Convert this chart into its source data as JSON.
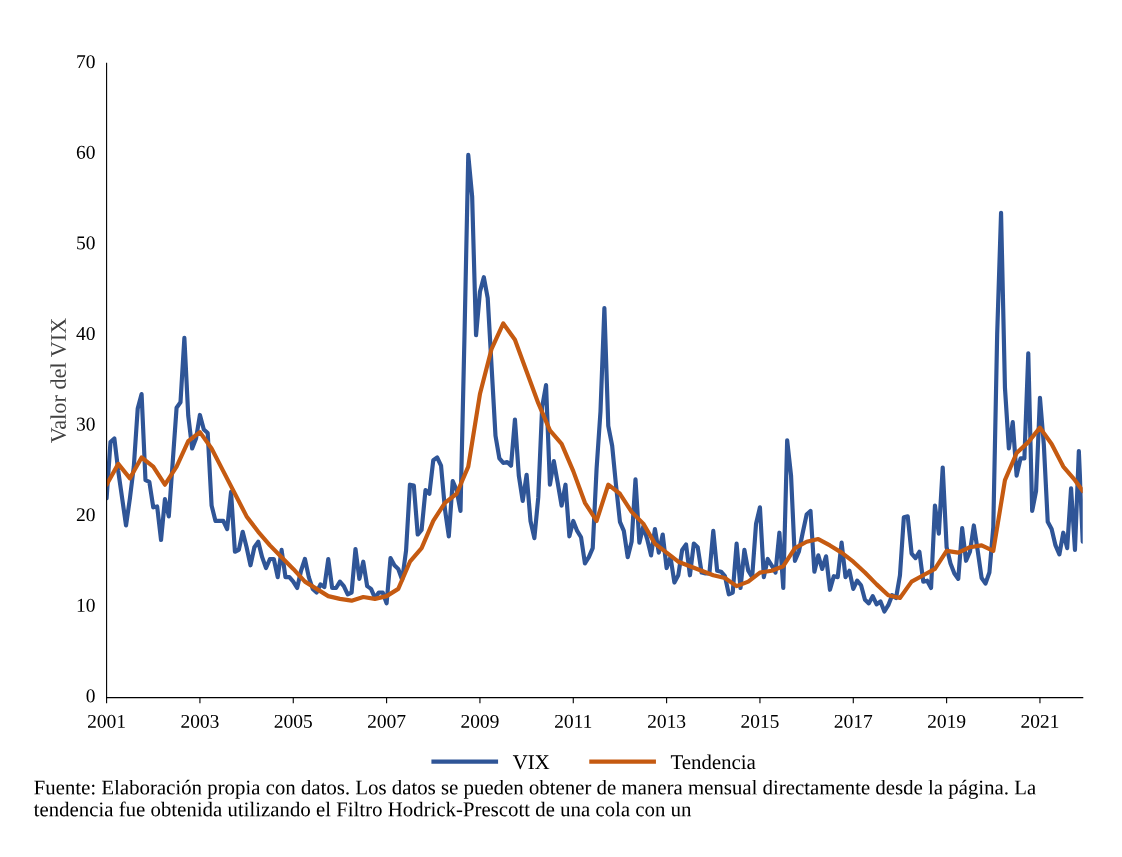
{
  "chart_data": {
    "type": "line",
    "ylabel": "Valor del VIX",
    "ylim": [
      0,
      70
    ],
    "yticks": [
      0,
      10,
      20,
      30,
      40,
      50,
      60,
      70
    ],
    "xlim": [
      "2001-01",
      "2021-12"
    ],
    "xticks": [
      {
        "value": "2001-01",
        "label": "2001"
      },
      {
        "value": "2003-01",
        "label": "2003"
      },
      {
        "value": "2005-01",
        "label": "2005"
      },
      {
        "value": "2007-01",
        "label": "2007"
      },
      {
        "value": "2009-01",
        "label": "2009"
      },
      {
        "value": "2011-01",
        "label": "2011"
      },
      {
        "value": "2013-01",
        "label": "2013"
      },
      {
        "value": "2015-01",
        "label": "2015"
      },
      {
        "value": "2017-01",
        "label": "2017"
      },
      {
        "value": "2019-01",
        "label": "2019"
      },
      {
        "value": "2021-01",
        "label": "2021"
      }
    ],
    "grid": false,
    "legend": "bottom",
    "series": [
      {
        "name": "VIX",
        "color": "#2f5597",
        "x": [
          "2001-01",
          "2001-02",
          "2001-03",
          "2001-04",
          "2001-05",
          "2001-06",
          "2001-07",
          "2001-08",
          "2001-09",
          "2001-10",
          "2001-11",
          "2001-12",
          "2002-01",
          "2002-02",
          "2002-03",
          "2002-04",
          "2002-05",
          "2002-06",
          "2002-07",
          "2002-08",
          "2002-09",
          "2002-10",
          "2002-11",
          "2002-12",
          "2003-01",
          "2003-02",
          "2003-03",
          "2003-04",
          "2003-05",
          "2003-06",
          "2003-07",
          "2003-08",
          "2003-09",
          "2003-10",
          "2003-11",
          "2003-12",
          "2004-01",
          "2004-02",
          "2004-03",
          "2004-04",
          "2004-05",
          "2004-06",
          "2004-07",
          "2004-08",
          "2004-09",
          "2004-10",
          "2004-11",
          "2004-12",
          "2005-01",
          "2005-02",
          "2005-03",
          "2005-04",
          "2005-05",
          "2005-06",
          "2005-07",
          "2005-08",
          "2005-09",
          "2005-10",
          "2005-11",
          "2005-12",
          "2006-01",
          "2006-02",
          "2006-03",
          "2006-04",
          "2006-05",
          "2006-06",
          "2006-07",
          "2006-08",
          "2006-09",
          "2006-10",
          "2006-11",
          "2006-12",
          "2007-01",
          "2007-02",
          "2007-03",
          "2007-04",
          "2007-05",
          "2007-06",
          "2007-07",
          "2007-08",
          "2007-09",
          "2007-10",
          "2007-11",
          "2007-12",
          "2008-01",
          "2008-02",
          "2008-03",
          "2008-04",
          "2008-05",
          "2008-06",
          "2008-07",
          "2008-08",
          "2008-09",
          "2008-10",
          "2008-11",
          "2008-12",
          "2009-01",
          "2009-02",
          "2009-03",
          "2009-04",
          "2009-05",
          "2009-06",
          "2009-07",
          "2009-08",
          "2009-09",
          "2009-10",
          "2009-11",
          "2009-12",
          "2010-01",
          "2010-02",
          "2010-03",
          "2010-04",
          "2010-05",
          "2010-06",
          "2010-07",
          "2010-08",
          "2010-09",
          "2010-10",
          "2010-11",
          "2010-12",
          "2011-01",
          "2011-02",
          "2011-03",
          "2011-04",
          "2011-05",
          "2011-06",
          "2011-07",
          "2011-08",
          "2011-09",
          "2011-10",
          "2011-11",
          "2011-12",
          "2012-01",
          "2012-02",
          "2012-03",
          "2012-04",
          "2012-05",
          "2012-06",
          "2012-07",
          "2012-08",
          "2012-09",
          "2012-10",
          "2012-11",
          "2012-12",
          "2013-01",
          "2013-02",
          "2013-03",
          "2013-04",
          "2013-05",
          "2013-06",
          "2013-07",
          "2013-08",
          "2013-09",
          "2013-10",
          "2013-11",
          "2013-12",
          "2014-01",
          "2014-02",
          "2014-03",
          "2014-04",
          "2014-05",
          "2014-06",
          "2014-07",
          "2014-08",
          "2014-09",
          "2014-10",
          "2014-11",
          "2014-12",
          "2015-01",
          "2015-02",
          "2015-03",
          "2015-04",
          "2015-05",
          "2015-06",
          "2015-07",
          "2015-08",
          "2015-09",
          "2015-10",
          "2015-11",
          "2015-12",
          "2016-01",
          "2016-02",
          "2016-03",
          "2016-04",
          "2016-05",
          "2016-06",
          "2016-07",
          "2016-08",
          "2016-09",
          "2016-10",
          "2016-11",
          "2016-12",
          "2017-01",
          "2017-02",
          "2017-03",
          "2017-04",
          "2017-05",
          "2017-06",
          "2017-07",
          "2017-08",
          "2017-09",
          "2017-10",
          "2017-11",
          "2017-12",
          "2018-01",
          "2018-02",
          "2018-03",
          "2018-04",
          "2018-05",
          "2018-06",
          "2018-07",
          "2018-08",
          "2018-09",
          "2018-10",
          "2018-11",
          "2018-12",
          "2019-01",
          "2019-02",
          "2019-03",
          "2019-04",
          "2019-05",
          "2019-06",
          "2019-07",
          "2019-08",
          "2019-09",
          "2019-10",
          "2019-11",
          "2019-12",
          "2020-01",
          "2020-02",
          "2020-03",
          "2020-04",
          "2020-05",
          "2020-06",
          "2020-07",
          "2020-08",
          "2020-09",
          "2020-10",
          "2020-11",
          "2020-12",
          "2021-01",
          "2021-02",
          "2021-03",
          "2021-04",
          "2021-05",
          "2021-06",
          "2021-07",
          "2021-08",
          "2021-09",
          "2021-10",
          "2021-11",
          "2021-12"
        ],
        "values": [
          22.0,
          28.2,
          28.6,
          25.0,
          22.0,
          19.0,
          22.0,
          25.5,
          31.9,
          33.5,
          24.0,
          23.8,
          21.0,
          21.1,
          17.4,
          21.9,
          20.0,
          26.0,
          32.0,
          32.6,
          39.7,
          31.1,
          27.5,
          28.6,
          31.2,
          29.6,
          29.2,
          21.2,
          19.5,
          19.5,
          19.5,
          18.6,
          22.7,
          16.1,
          16.3,
          18.3,
          16.6,
          14.6,
          16.6,
          17.2,
          15.5,
          14.3,
          15.3,
          15.3,
          13.3,
          16.3,
          13.3,
          13.3,
          12.8,
          12.1,
          14.0,
          15.3,
          13.3,
          12.0,
          11.6,
          12.5,
          12.2,
          15.3,
          12.1,
          12.1,
          12.8,
          12.3,
          11.4,
          11.6,
          16.4,
          13.1,
          15.0,
          12.3,
          12.0,
          11.0,
          11.6,
          11.6,
          10.4,
          15.4,
          14.6,
          14.2,
          13.0,
          16.2,
          23.5,
          23.4,
          18.0,
          18.5,
          22.9,
          22.5,
          26.2,
          26.5,
          25.6,
          20.8,
          17.8,
          23.9,
          22.9,
          20.6,
          39.4,
          59.9,
          55.3,
          40.0,
          44.8,
          46.4,
          44.1,
          36.5,
          28.9,
          26.4,
          25.9,
          26.0,
          25.6,
          30.7,
          24.5,
          21.7,
          24.6,
          19.5,
          17.6,
          22.1,
          32.1,
          34.5,
          23.5,
          26.1,
          23.7,
          21.2,
          23.5,
          17.8,
          19.5,
          18.4,
          17.7,
          14.8,
          15.5,
          16.5,
          25.3,
          31.6,
          43.0,
          30.0,
          27.8,
          23.4,
          19.4,
          18.4,
          15.5,
          17.2,
          24.1,
          17.1,
          18.9,
          17.5,
          15.7,
          18.6,
          16.0,
          18.0,
          14.3,
          15.5,
          12.7,
          13.5,
          16.3,
          16.9,
          13.5,
          17.0,
          16.6,
          13.8,
          13.7,
          13.7,
          18.4,
          14.0,
          13.9,
          13.4,
          11.4,
          11.6,
          17.0,
          12.1,
          16.3,
          14.0,
          13.3,
          19.2,
          21.0,
          13.3,
          15.3,
          14.6,
          13.8,
          18.2,
          12.1,
          28.4,
          24.5,
          15.1,
          16.1,
          18.2,
          20.2,
          20.6,
          13.9,
          15.7,
          14.2,
          15.6,
          11.9,
          13.4,
          13.3,
          17.1,
          13.3,
          14.0,
          12.0,
          12.9,
          12.4,
          10.8,
          10.4,
          11.2,
          10.3,
          10.6,
          9.5,
          10.2,
          11.3,
          11.0,
          13.5,
          19.9,
          20.0,
          15.9,
          15.4,
          16.1,
          12.8,
          12.9,
          12.1,
          21.2,
          18.1,
          25.4,
          16.6,
          14.8,
          13.7,
          13.1,
          18.7,
          15.1,
          16.1,
          19.0,
          16.2,
          13.2,
          12.6,
          13.8,
          18.8,
          40.1,
          53.5,
          34.2,
          27.5,
          30.4,
          24.5,
          26.4,
          26.4,
          38.0,
          20.6,
          22.8,
          33.1,
          27.9,
          19.4,
          18.6,
          16.8,
          15.8,
          18.2,
          16.5,
          23.1,
          16.3,
          27.2,
          17.2
        ]
      },
      {
        "name": "Tendencia",
        "color": "#c55a11",
        "x": [
          "2001-01",
          "2001-04",
          "2001-07",
          "2001-10",
          "2002-01",
          "2002-04",
          "2002-07",
          "2002-10",
          "2003-01",
          "2003-04",
          "2003-07",
          "2003-10",
          "2004-01",
          "2004-04",
          "2004-07",
          "2004-10",
          "2005-01",
          "2005-04",
          "2005-07",
          "2005-10",
          "2006-01",
          "2006-04",
          "2006-07",
          "2006-10",
          "2007-01",
          "2007-04",
          "2007-07",
          "2007-10",
          "2008-01",
          "2008-04",
          "2008-07",
          "2008-10",
          "2009-01",
          "2009-04",
          "2009-07",
          "2009-10",
          "2010-01",
          "2010-04",
          "2010-07",
          "2010-10",
          "2011-01",
          "2011-04",
          "2011-07",
          "2011-10",
          "2012-01",
          "2012-04",
          "2012-07",
          "2012-10",
          "2013-01",
          "2013-04",
          "2013-07",
          "2013-10",
          "2014-01",
          "2014-04",
          "2014-07",
          "2014-10",
          "2015-01",
          "2015-04",
          "2015-07",
          "2015-10",
          "2016-01",
          "2016-04",
          "2016-07",
          "2016-10",
          "2017-01",
          "2017-04",
          "2017-07",
          "2017-10",
          "2018-01",
          "2018-04",
          "2018-07",
          "2018-10",
          "2019-01",
          "2019-04",
          "2019-07",
          "2019-10",
          "2020-01",
          "2020-04",
          "2020-07",
          "2020-10",
          "2021-01",
          "2021-04",
          "2021-07",
          "2021-10",
          "2021-12"
        ],
        "values": [
          23.5,
          25.8,
          24.2,
          26.5,
          25.5,
          23.5,
          25.5,
          28.3,
          29.3,
          27.5,
          25.0,
          22.5,
          20.0,
          18.3,
          16.8,
          15.5,
          14.2,
          12.8,
          12.0,
          11.2,
          10.9,
          10.7,
          11.1,
          10.9,
          11.2,
          12.0,
          15.0,
          16.5,
          19.5,
          21.5,
          22.5,
          25.5,
          33.5,
          38.5,
          41.3,
          39.5,
          36.0,
          32.5,
          29.5,
          28.0,
          25.0,
          21.5,
          19.5,
          23.5,
          22.5,
          20.5,
          19.2,
          17.0,
          16.0,
          15.0,
          14.5,
          14.0,
          13.5,
          13.2,
          12.3,
          12.8,
          13.8,
          14.0,
          14.5,
          16.5,
          17.2,
          17.5,
          16.8,
          16.0,
          15.0,
          13.8,
          12.5,
          11.3,
          11.0,
          12.8,
          13.5,
          14.2,
          16.2,
          16.0,
          16.6,
          16.8,
          16.2,
          24.0,
          27.0,
          28.2,
          29.8,
          28.0,
          25.5,
          24.0,
          22.8
        ]
      }
    ],
    "annotations": [
      "Fuente: Elaboración propia con datos. Los datos se pueden obtener de manera mensual directamente desde la página. La tendencia fue obtenida utilizando el Filtro Hodrick-Prescott de una cola con un"
    ]
  }
}
